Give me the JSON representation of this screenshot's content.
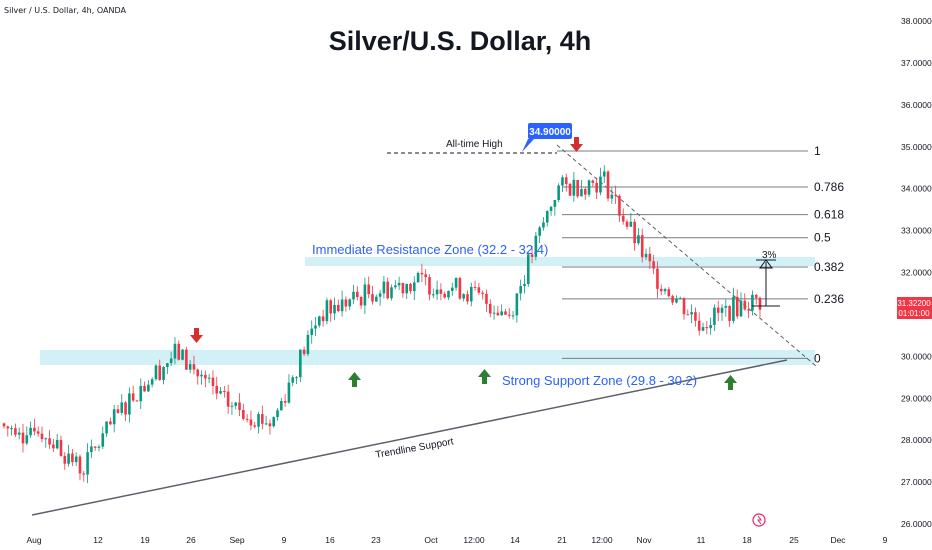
{
  "header": {
    "symbol_info": "Silver / U.S. Dollar, 4h, OANDA",
    "title": "Silver/U.S. Dollar, 4h"
  },
  "chart_data": {
    "type": "candlestick",
    "title": "Silver/U.S. Dollar, 4h",
    "x_ticks": [
      "Aug",
      "12",
      "19",
      "26",
      "Sep",
      "9",
      "16",
      "23",
      "Oct",
      "12:00",
      "14",
      "21",
      "12:00",
      "Nov",
      "11",
      "18",
      "25",
      "Dec",
      "9"
    ],
    "y_ticks": [
      "38.00000",
      "37.00000",
      "36.00000",
      "35.00000",
      "34.00000",
      "33.00000",
      "32.00000",
      "31.00000",
      "30.00000",
      "29.00000",
      "28.00000",
      "27.00000",
      "26.00000"
    ],
    "ylim": [
      26.0,
      38.0
    ],
    "price_path_points": [
      {
        "x": "Aug",
        "y": 28.4
      },
      {
        "x": "12",
        "y": 27.3
      },
      {
        "x": "19",
        "y": 29.0
      },
      {
        "x": "26",
        "y": 30.1
      },
      {
        "x": "Sep",
        "y": 28.9
      },
      {
        "x": "9",
        "y": 28.4
      },
      {
        "x": "16",
        "y": 31.0
      },
      {
        "x": "23",
        "y": 31.5
      },
      {
        "x": "Oct",
        "y": 31.8
      },
      {
        "x": "12:00",
        "y": 31.6
      },
      {
        "x": "14",
        "y": 31.0
      },
      {
        "x": "21",
        "y": 34.0
      },
      {
        "x": "12:00",
        "y": 34.2
      },
      {
        "x": "Nov",
        "y": 32.0
      },
      {
        "x": "11",
        "y": 30.8
      },
      {
        "x": "18",
        "y": 31.3
      }
    ],
    "fibonacci_levels": [
      {
        "label": "1",
        "value": 34.9
      },
      {
        "label": "0.786",
        "value": 34.04
      },
      {
        "label": "0.618",
        "value": 33.38
      },
      {
        "label": "0.5",
        "value": 32.83
      },
      {
        "label": "0.382",
        "value": 32.13
      },
      {
        "label": "0.236",
        "value": 31.37
      },
      {
        "label": "0",
        "value": 29.95
      }
    ],
    "zones": [
      {
        "label": "Immediate Resistance Zone (32.2 - 32.4)",
        "low": 32.2,
        "high": 32.4
      },
      {
        "label": "Strong Support Zone (29.8 - 30.2)",
        "low": 29.8,
        "high": 30.2
      }
    ],
    "annotations": {
      "all_time_high": "All-time High",
      "ath_value": "34.90000",
      "trendline": "Trendline Support",
      "percent_move": "3%"
    },
    "current_price": {
      "value": "31.32200",
      "countdown": "01:01:00"
    },
    "colors": {
      "up": "#089981",
      "down": "#f23645",
      "zone": "#d2f1f7",
      "badge": "#2962ff",
      "price_tag": "#f23645",
      "arrow_up": "#2e7d32",
      "arrow_down": "#d32f2f"
    }
  }
}
